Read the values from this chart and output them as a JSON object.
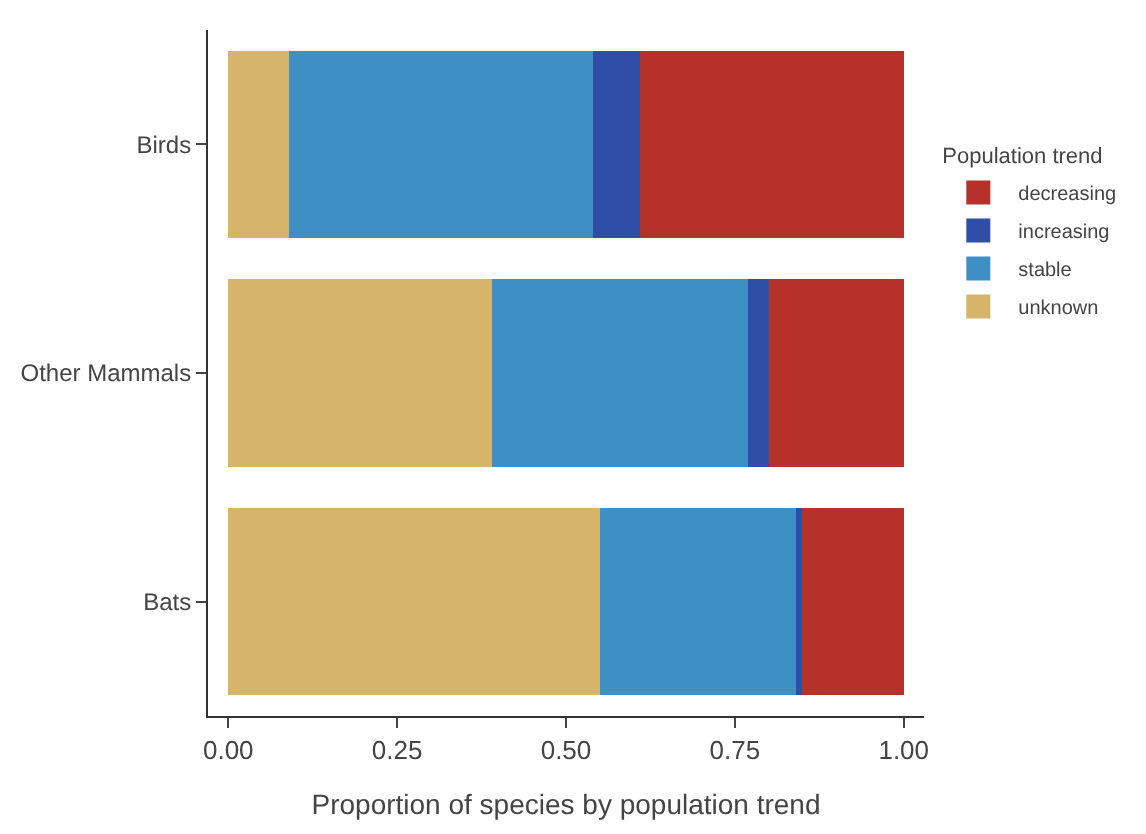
{
  "chart_data": {
    "type": "bar",
    "orientation": "horizontal",
    "stacked": true,
    "categories": [
      "Birds",
      "Other Mammals",
      "Bats"
    ],
    "xlabel": "Proportion of species by population trend",
    "legend_title": "Population trend",
    "series": [
      {
        "name": "unknown",
        "color": "#d4b56a",
        "values": [
          0.09,
          0.39,
          0.55
        ]
      },
      {
        "name": "stable",
        "color": "#3d8fc4",
        "values": [
          0.45,
          0.38,
          0.29
        ]
      },
      {
        "name": "increasing",
        "color": "#2f4ea8",
        "values": [
          0.07,
          0.03,
          0.01
        ]
      },
      {
        "name": "decreasing",
        "color": "#b5312a",
        "values": [
          0.39,
          0.2,
          0.15
        ]
      }
    ],
    "xlim": [
      -0.03,
      1.03
    ],
    "xticks": [
      {
        "value": 0,
        "label": "0.00"
      },
      {
        "value": 0.25,
        "label": "0.25"
      },
      {
        "value": 0.5,
        "label": "0.50"
      },
      {
        "value": 0.75,
        "label": "0.75"
      },
      {
        "value": 1,
        "label": "1.00"
      }
    ],
    "legend": "right"
  }
}
